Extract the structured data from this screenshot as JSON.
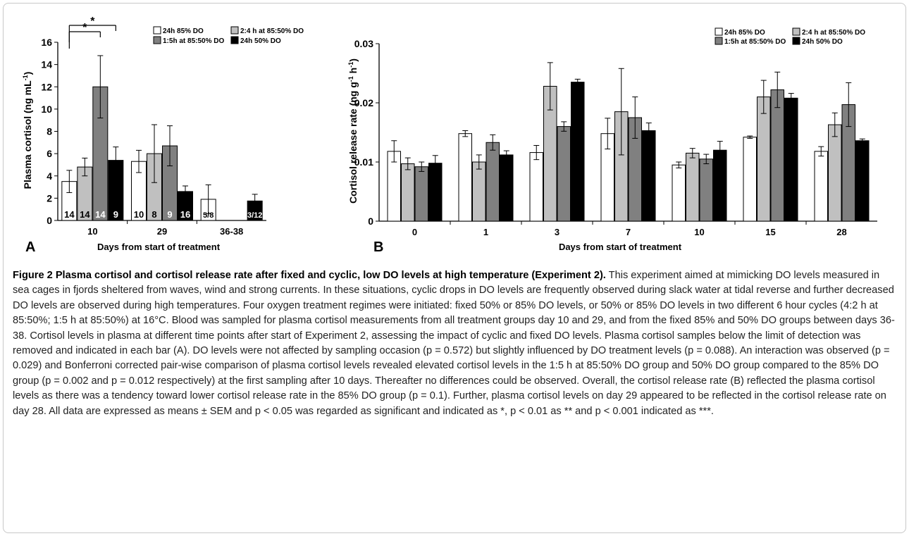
{
  "figure": {
    "panels": [
      "A",
      "B"
    ],
    "caption_title": "Figure 2 Plasma cortisol and cortisol release rate after fixed and cyclic, low DO levels at high temperature (Experiment 2).",
    "caption_body": " This experiment aimed at mimicking DO levels measured in sea cages in fjords sheltered from waves, wind and strong currents. In these situations, cyclic drops in DO levels are frequently observed during slack water at tidal reverse and further decreased DO levels are observed during high temperatures. Four oxygen treatment regimes were initiated: fixed 50% or 85% DO levels, or 50% or 85% DO levels in two different 6 hour cycles (4:2 h at 85:50%; 1:5 h at 85:50%) at 16°C. Blood was sampled for plasma cortisol measurements from all treatment groups day 10 and 29, and from the fixed 85% and 50% DO groups between days 36-38. Cortisol levels in plasma at different time points after start of Experiment 2, assessing the impact of cyclic and fixed DO levels. Plasma cortisol samples below the limit of detection was removed and indicated in each bar (A). DO levels were not affected by sampling occasion (p = 0.572) but slightly influenced by DO treatment levels (p = 0.088). An interaction was observed (p = 0.029) and Bonferroni corrected pair-wise comparison of plasma cortisol levels revealed elevated cortisol levels in the 1:5 h at 85:50% DO group and 50% DO group compared to the 85% DO group (p = 0.002 and p = 0.012 respectively) at the first sampling after 10 days. Thereafter no differences could be observed. Overall, the cortisol release rate (B) reflected the plasma cortisol levels as there was a tendency toward lower cortisol release rate in the 85% DO group (p = 0.1). Further, plasma cortisol levels on day 29 appeared to be reflected in the cortisol release rate on day 28. All data are expressed as means ± SEM and p < 0.05 was regarded as significant and indicated as *, p < 0.01 as ** and p < 0.001 indicated as ***."
  },
  "colors": {
    "s0": "#ffffff",
    "s1": "#c0c0c0",
    "s2": "#808080",
    "s3": "#000000"
  },
  "chart_data": [
    {
      "type": "bar",
      "panel": "A",
      "xlabel": "Days from start of treatment",
      "ylabel": "Plasma cortisol (ng mL",
      "ylabel_sup": "-1",
      "ylabel_end": ")",
      "ylim": [
        0,
        16
      ],
      "yticks": [
        "0",
        "2",
        "4",
        "6",
        "8",
        "10",
        "12",
        "14",
        "16"
      ],
      "categories": [
        "10",
        "29",
        "36-38"
      ],
      "legend": [
        "24h 85% DO",
        "2:4 h at 85:50% DO",
        "1:5h at 85:50% DO",
        "24h 50% DO"
      ],
      "series": [
        {
          "name": "24h 85% DO",
          "values": [
            3.5,
            5.3,
            1.9
          ],
          "errors": [
            1.0,
            1.0,
            1.3
          ],
          "counts": [
            "14",
            "10",
            "5/8"
          ]
        },
        {
          "name": "2:4 h at 85:50% DO",
          "values": [
            4.8,
            6.0,
            null
          ],
          "errors": [
            0.8,
            2.6,
            null
          ],
          "counts": [
            "14",
            "8",
            ""
          ]
        },
        {
          "name": "1:5h at 85:50% DO",
          "values": [
            12.0,
            6.7,
            null
          ],
          "errors": [
            2.8,
            1.8,
            null
          ],
          "counts": [
            "14",
            "9",
            ""
          ]
        },
        {
          "name": "24h 50% DO",
          "values": [
            5.4,
            2.6,
            1.75
          ],
          "errors": [
            1.2,
            0.5,
            0.6
          ],
          "counts": [
            "9",
            "16",
            "3/12"
          ]
        }
      ],
      "significance": [
        "*",
        "*"
      ]
    },
    {
      "type": "bar",
      "panel": "B",
      "xlabel": "Days from start of treatment",
      "ylabel": "Cortisol release rate (ng g",
      "ylabel_sup1": "-1",
      "ylabel_mid": " h",
      "ylabel_sup2": "-1",
      "ylabel_end": ")",
      "ylim": [
        0,
        0.03
      ],
      "yticks": [
        "0",
        "0.01",
        "0.02",
        "0.03"
      ],
      "categories": [
        "0",
        "1",
        "3",
        "7",
        "10",
        "15",
        "28"
      ],
      "legend": [
        "24h 85% DO",
        "2:4 h at 85:50% DO",
        "1:5h at 85:50% DO",
        "24h 50% DO"
      ],
      "series": [
        {
          "name": "24h 85% DO",
          "values": [
            0.0118,
            0.0148,
            0.0116,
            0.0148,
            0.0095,
            0.0142,
            0.0118
          ],
          "errors": [
            0.0018,
            0.0005,
            0.0012,
            0.0026,
            0.0005,
            0.0002,
            0.0008
          ]
        },
        {
          "name": "2:4 h at 85:50% DO",
          "values": [
            0.0097,
            0.01,
            0.0228,
            0.0185,
            0.0115,
            0.021,
            0.0163
          ],
          "errors": [
            0.001,
            0.0012,
            0.004,
            0.0073,
            0.0008,
            0.0028,
            0.002
          ]
        },
        {
          "name": "1:5h at 85:50% DO",
          "values": [
            0.0092,
            0.0133,
            0.016,
            0.0175,
            0.0105,
            0.0222,
            0.0197
          ],
          "errors": [
            0.0008,
            0.0013,
            0.0008,
            0.0035,
            0.0008,
            0.003,
            0.0037
          ]
        },
        {
          "name": "24h 50% DO",
          "values": [
            0.0098,
            0.0112,
            0.0235,
            0.0153,
            0.012,
            0.0208,
            0.0136
          ],
          "errors": [
            0.0013,
            0.0007,
            0.0005,
            0.0013,
            0.0015,
            0.0008,
            0.0003
          ]
        }
      ]
    }
  ]
}
